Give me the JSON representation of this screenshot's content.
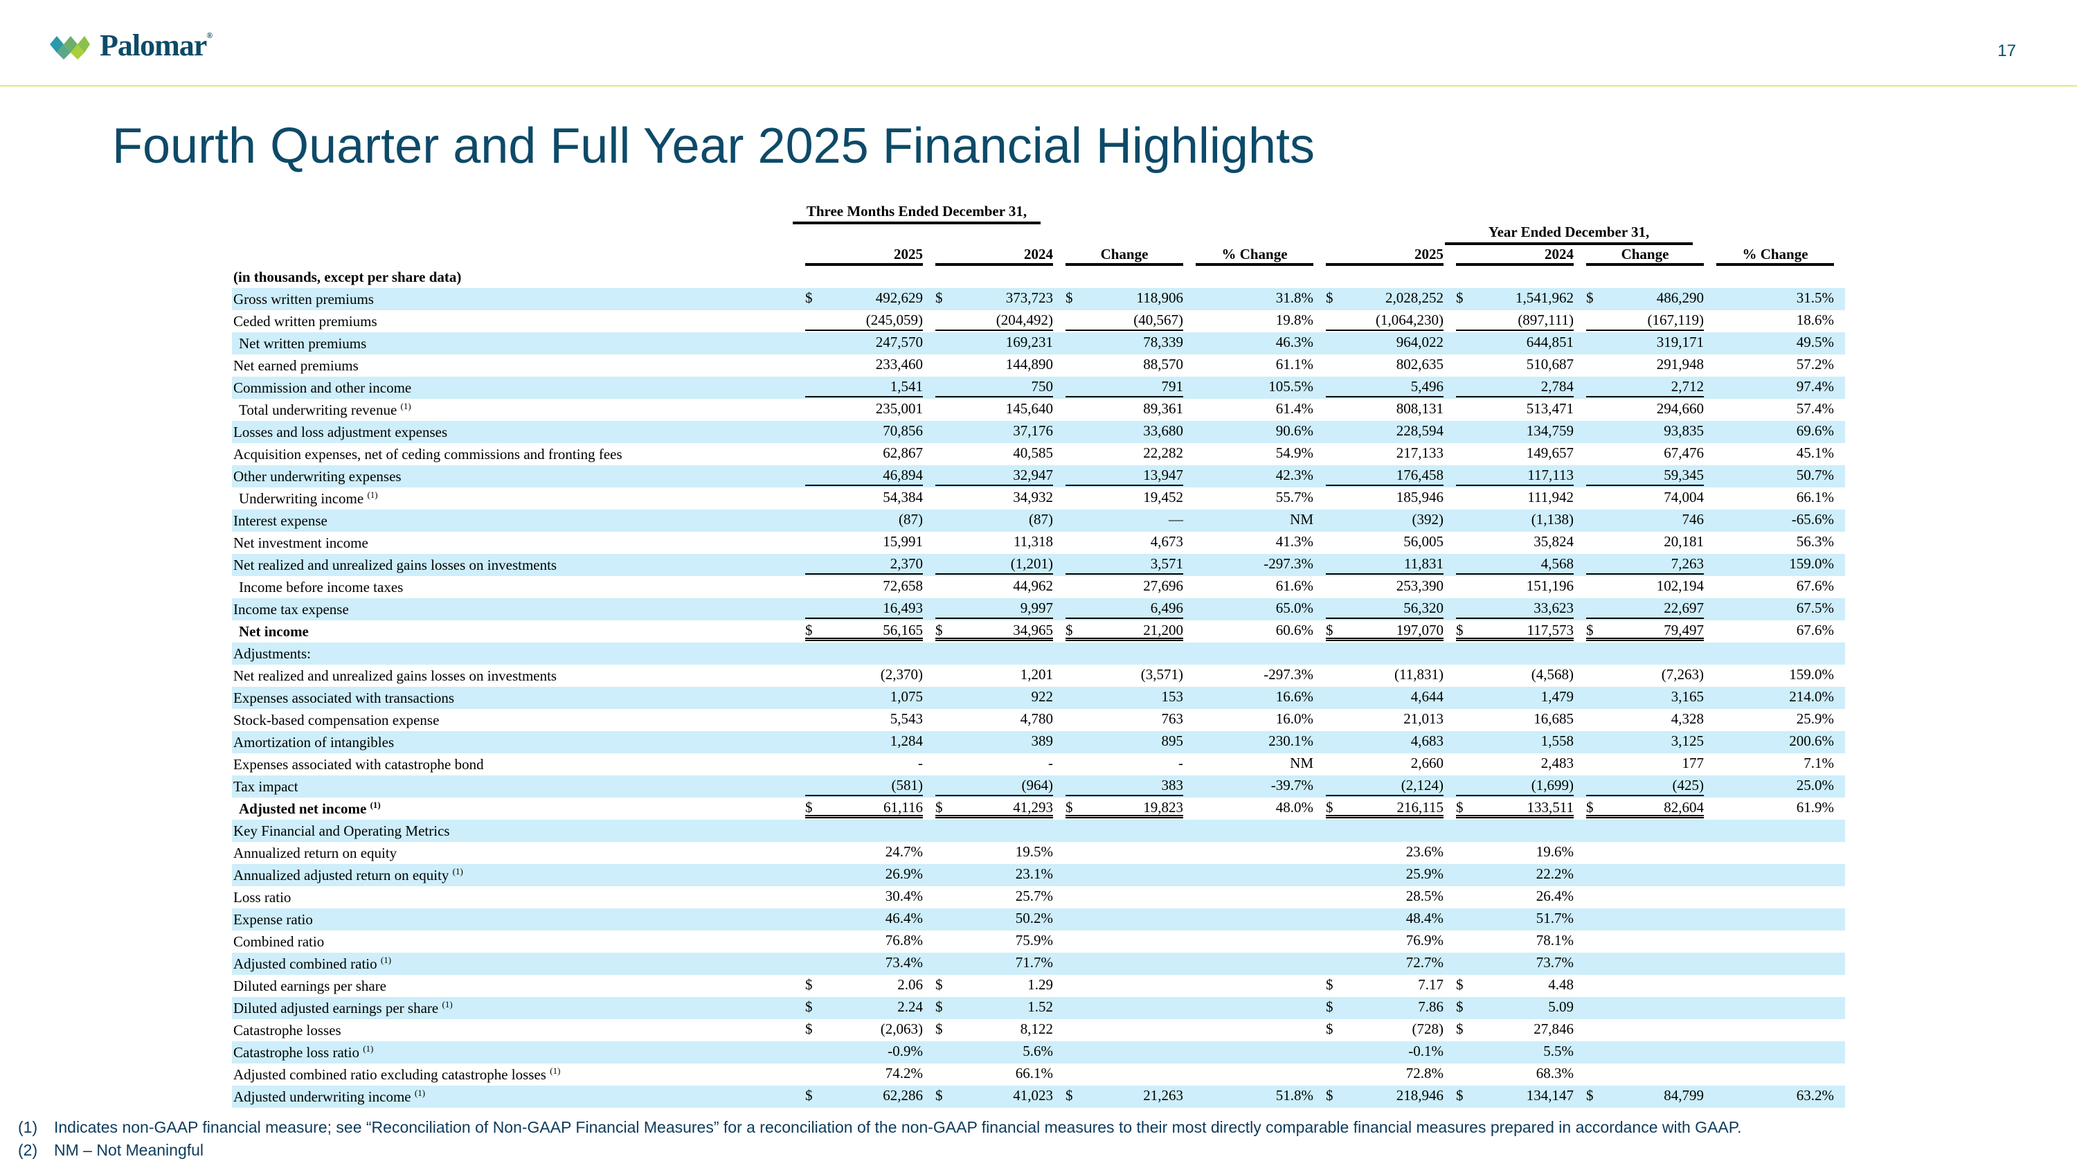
{
  "header": {
    "brand": "Palomar",
    "reg_mark": "®",
    "page_number": "17"
  },
  "title": "Fourth Quarter and Full Year 2025 Financial Highlights",
  "table": {
    "group_quarter": "Three Months Ended December 31,",
    "group_year": "Year Ended December 31,",
    "columns": [
      "2025",
      "2024",
      "Change",
      "% Change",
      "2025",
      "2024",
      "Change",
      "% Change"
    ],
    "rows": [
      {
        "label": "(in thousands, except per share data)",
        "bold": true,
        "cells": [
          "",
          "",
          "",
          "",
          "",
          "",
          "",
          ""
        ]
      },
      {
        "label": "Gross written premiums",
        "cells": [
          "$ 492,629",
          "$ 373,723",
          "$ 118,906",
          "31.8%",
          "$ 2,028,252",
          "$ 1,541,962",
          "$ 486,290",
          "31.5%"
        ]
      },
      {
        "label": "Ceded written premiums",
        "underline": "single",
        "cells": [
          "(245,059)",
          "(204,492)",
          "(40,567)",
          "19.8%",
          "(1,064,230)",
          "(897,111)",
          "(167,119)",
          "18.6%"
        ]
      },
      {
        "label": "Net written premiums",
        "indent": true,
        "cells": [
          "247,570",
          "169,231",
          "78,339",
          "46.3%",
          "964,022",
          "644,851",
          "319,171",
          "49.5%"
        ]
      },
      {
        "label": "Net earned premiums",
        "cells": [
          "233,460",
          "144,890",
          "88,570",
          "61.1%",
          "802,635",
          "510,687",
          "291,948",
          "57.2%"
        ]
      },
      {
        "label": "Commission and other income",
        "underline": "single",
        "cells": [
          "1,541",
          "750",
          "791",
          "105.5%",
          "5,496",
          "2,784",
          "2,712",
          "97.4%"
        ]
      },
      {
        "label": "Total underwriting revenue",
        "note": "(1)",
        "indent": true,
        "cells": [
          "235,001",
          "145,640",
          "89,361",
          "61.4%",
          "808,131",
          "513,471",
          "294,660",
          "57.4%"
        ]
      },
      {
        "label": "Losses and loss adjustment expenses",
        "cells": [
          "70,856",
          "37,176",
          "33,680",
          "90.6%",
          "228,594",
          "134,759",
          "93,835",
          "69.6%"
        ]
      },
      {
        "label": "Acquisition expenses, net of ceding commissions and fronting fees",
        "cells": [
          "62,867",
          "40,585",
          "22,282",
          "54.9%",
          "217,133",
          "149,657",
          "67,476",
          "45.1%"
        ]
      },
      {
        "label": "Other underwriting expenses",
        "underline": "single",
        "cells": [
          "46,894",
          "32,947",
          "13,947",
          "42.3%",
          "176,458",
          "117,113",
          "59,345",
          "50.7%"
        ]
      },
      {
        "label": "Underwriting income",
        "note": "(1)",
        "indent": true,
        "cells": [
          "54,384",
          "34,932",
          "19,452",
          "55.7%",
          "185,946",
          "111,942",
          "74,004",
          "66.1%"
        ]
      },
      {
        "label": "Interest expense",
        "cells": [
          "(87)",
          "(87)",
          "—",
          "NM",
          "(392)",
          "(1,138)",
          "746",
          "-65.6%"
        ]
      },
      {
        "label": "Net investment income",
        "cells": [
          "15,991",
          "11,318",
          "4,673",
          "41.3%",
          "56,005",
          "35,824",
          "20,181",
          "56.3%"
        ]
      },
      {
        "label": "Net realized and unrealized gains losses on investments",
        "underline": "single",
        "cells": [
          "2,370",
          "(1,201)",
          "3,571",
          "-297.3%",
          "11,831",
          "4,568",
          "7,263",
          "159.0%"
        ]
      },
      {
        "label": "Income before income taxes",
        "indent": true,
        "cells": [
          "72,658",
          "44,962",
          "27,696",
          "61.6%",
          "253,390",
          "151,196",
          "102,194",
          "67.6%"
        ]
      },
      {
        "label": "Income tax expense",
        "underline": "single",
        "cells": [
          "16,493",
          "9,997",
          "6,496",
          "65.0%",
          "56,320",
          "33,623",
          "22,697",
          "67.5%"
        ]
      },
      {
        "label": "Net income",
        "bold": true,
        "indent": true,
        "underline": "double",
        "cells": [
          "$ 56,165",
          "$ 34,965",
          "$ 21,200",
          "60.6%",
          "$ 197,070",
          "$ 117,573",
          "$ 79,497",
          "67.6%"
        ]
      },
      {
        "label": "Adjustments:",
        "cells": [
          "",
          "",
          "",
          "",
          "",
          "",
          "",
          ""
        ]
      },
      {
        "label": "Net realized and unrealized gains losses on investments",
        "cells": [
          "(2,370)",
          "1,201",
          "(3,571)",
          "-297.3%",
          "(11,831)",
          "(4,568)",
          "(7,263)",
          "159.0%"
        ]
      },
      {
        "label": "Expenses associated with transactions",
        "cells": [
          "1,075",
          "922",
          "153",
          "16.6%",
          "4,644",
          "1,479",
          "3,165",
          "214.0%"
        ]
      },
      {
        "label": "Stock-based compensation expense",
        "cells": [
          "5,543",
          "4,780",
          "763",
          "16.0%",
          "21,013",
          "16,685",
          "4,328",
          "25.9%"
        ]
      },
      {
        "label": "Amortization of intangibles",
        "cells": [
          "1,284",
          "389",
          "895",
          "230.1%",
          "4,683",
          "1,558",
          "3,125",
          "200.6%"
        ]
      },
      {
        "label": "Expenses associated with catastrophe bond",
        "cells": [
          "-",
          "-",
          "-",
          "NM",
          "2,660",
          "2,483",
          "177",
          "7.1%"
        ]
      },
      {
        "label": "Tax impact",
        "underline": "single",
        "cells": [
          "(581)",
          "(964)",
          "383",
          "-39.7%",
          "(2,124)",
          "(1,699)",
          "(425)",
          "25.0%"
        ]
      },
      {
        "label": "Adjusted net income",
        "note": "(1)",
        "bold": true,
        "indent": true,
        "underline": "double",
        "cells": [
          "$ 61,116",
          "$ 41,293",
          "$ 19,823",
          "48.0%",
          "$ 216,115",
          "$ 133,511",
          "$ 82,604",
          "61.9%"
        ]
      },
      {
        "label": "Key Financial and Operating Metrics",
        "cells": [
          "",
          "",
          "",
          "",
          "",
          "",
          "",
          ""
        ]
      },
      {
        "label": "Annualized return on equity",
        "cells": [
          "24.7%",
          "19.5%",
          "",
          "",
          "23.6%",
          "19.6%",
          "",
          ""
        ]
      },
      {
        "label": "Annualized adjusted return on equity",
        "note": "(1)",
        "cells": [
          "26.9%",
          "23.1%",
          "",
          "",
          "25.9%",
          "22.2%",
          "",
          ""
        ]
      },
      {
        "label": "Loss ratio",
        "cells": [
          "30.4%",
          "25.7%",
          "",
          "",
          "28.5%",
          "26.4%",
          "",
          ""
        ]
      },
      {
        "label": "Expense ratio",
        "cells": [
          "46.4%",
          "50.2%",
          "",
          "",
          "48.4%",
          "51.7%",
          "",
          ""
        ]
      },
      {
        "label": "Combined ratio",
        "cells": [
          "76.8%",
          "75.9%",
          "",
          "",
          "76.9%",
          "78.1%",
          "",
          ""
        ]
      },
      {
        "label": "Adjusted combined ratio",
        "note": "(1)",
        "cells": [
          "73.4%",
          "71.7%",
          "",
          "",
          "72.7%",
          "73.7%",
          "",
          ""
        ]
      },
      {
        "label": "Diluted earnings per share",
        "cells": [
          "$ 2.06",
          "$ 1.29",
          "",
          "",
          "$ 7.17",
          "$ 4.48",
          "",
          ""
        ]
      },
      {
        "label": "Diluted adjusted earnings per share",
        "note": "(1)",
        "cells": [
          "$ 2.24",
          "$ 1.52",
          "",
          "",
          "$ 7.86",
          "$ 5.09",
          "",
          ""
        ]
      },
      {
        "label": "Catastrophe losses",
        "cells": [
          "$ (2,063)",
          "$ 8,122",
          "",
          "",
          "$ (728)",
          "$ 27,846",
          "",
          ""
        ]
      },
      {
        "label": "Catastrophe loss ratio",
        "note": "(1)",
        "cells": [
          "-0.9%",
          "5.6%",
          "",
          "",
          "-0.1%",
          "5.5%",
          "",
          ""
        ]
      },
      {
        "label": "Adjusted combined ratio excluding catastrophe losses",
        "note": "(1)",
        "cells": [
          "74.2%",
          "66.1%",
          "",
          "",
          "72.8%",
          "68.3%",
          "",
          ""
        ]
      },
      {
        "label": "Adjusted underwriting income",
        "note": "(1)",
        "cells": [
          "$ 62,286",
          "$ 41,023",
          "$ 21,263",
          "51.8%",
          "$ 218,946",
          "$ 134,147",
          "$ 84,799",
          "63.2%"
        ]
      }
    ]
  },
  "footnotes": [
    {
      "num": "(1)",
      "text": "Indicates non-GAAP financial measure; see “Reconciliation of Non-GAAP Financial Measures” for a reconciliation of the non-GAAP financial measures to their most directly comparable financial measures prepared in accordance with GAAP."
    },
    {
      "num": "(2)",
      "text": "NM – Not Meaningful"
    }
  ],
  "colors": {
    "brand": "#0d4a68",
    "stripe": "#cdeefa",
    "rule": "#dfe78a"
  }
}
